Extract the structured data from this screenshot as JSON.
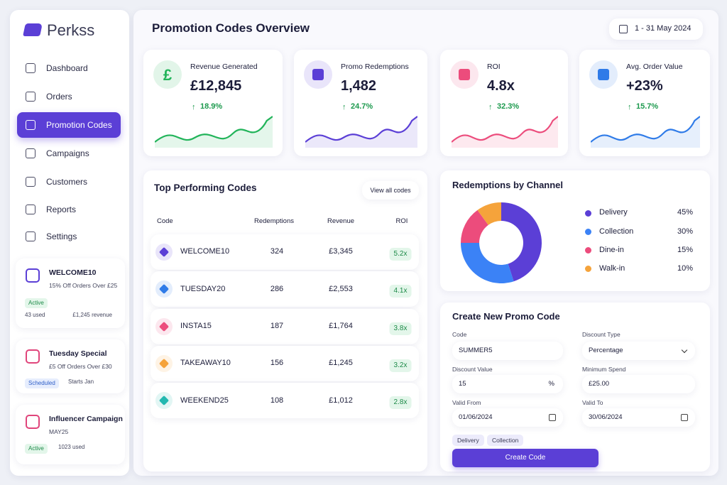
{
  "brand": "Perkss",
  "nav": [
    "Dashboard",
    "Orders",
    "Promotion Codes",
    "Campaigns",
    "Customers",
    "Reports",
    "Settings"
  ],
  "side_cards": [
    {
      "title": "WELCOME10",
      "subtitle": "15% Off Orders Over £25",
      "status": "Active",
      "left": "43 used",
      "right": "£1,245 revenue",
      "color": "#5b3fd6"
    },
    {
      "title": "Tuesday Special",
      "subtitle": "£5 Off Orders Over £30",
      "status": "Scheduled",
      "right": "Starts Jan",
      "color": "#e0457b"
    },
    {
      "title": "Influencer Campaign",
      "subtitle": "MAY25",
      "status": "Active",
      "right": "1023 used",
      "color": "#e0457b"
    }
  ],
  "header": {
    "title": "Promotion Codes Overview",
    "date_range": "1 - 31 May 2024"
  },
  "kpis": [
    {
      "label": "Revenue Generated",
      "value": "£12,845",
      "change": "18.9%",
      "color": "#22b45a",
      "icon": "£"
    },
    {
      "label": "Promo Redemptions",
      "value": "1,482",
      "change": "24.7%",
      "color": "#5b3fd6"
    },
    {
      "label": "ROI",
      "value": "4.8x",
      "change": "32.3%",
      "color": "#ec4c7c"
    },
    {
      "label": "Avg. Order Value",
      "value": "+23%",
      "change": "15.7%",
      "color": "#2f7be8"
    }
  ],
  "top_codes": {
    "title": "Top Performing Codes",
    "action": "View all codes",
    "columns": [
      "Code",
      "Redemptions",
      "Revenue",
      "ROI"
    ],
    "rows": [
      {
        "code": "WELCOME10",
        "redemptions": 324,
        "revenue": "£3,345",
        "roi": "5.2x",
        "color": "#5b3fd6"
      },
      {
        "code": "TUESDAY20",
        "redemptions": 286,
        "revenue": "£2,553",
        "roi": "4.1x",
        "color": "#2f7be8"
      },
      {
        "code": "INSTA15",
        "redemptions": 187,
        "revenue": "£1,764",
        "roi": "3.8x",
        "color": "#ec4c7c"
      },
      {
        "code": "TAKEAWAY10",
        "redemptions": 156,
        "revenue": "£1,245",
        "roi": "3.2x",
        "color": "#f5a33b"
      },
      {
        "code": "WEEKEND25",
        "redemptions": 108,
        "revenue": "£1,012",
        "roi": "2.8x",
        "color": "#22b8b0"
      }
    ]
  },
  "channels": {
    "title": "Redemptions by Channel",
    "items": [
      {
        "name": "Delivery",
        "value": 45,
        "label": "45%",
        "color": "#5b3fd6"
      },
      {
        "name": "Collection",
        "value": 30,
        "label": "30%",
        "color": "#3b82f6"
      },
      {
        "name": "Dine-in",
        "value": 15,
        "label": "15%",
        "color": "#ec4c7c"
      },
      {
        "name": "Walk-in",
        "value": 10,
        "label": "10%",
        "color": "#f5a33b"
      }
    ]
  },
  "create_form": {
    "title": "Create New Promo Code",
    "fields": [
      {
        "label": "Code",
        "value": "SUMMER5"
      },
      {
        "label": "Discount Type",
        "value": "Percentage"
      },
      {
        "label": "Discount Value",
        "value": "15",
        "suffix": "%"
      },
      {
        "label": "Minimum Spend",
        "value": "£25.00"
      },
      {
        "label": "Valid From",
        "value": "01/06/2024"
      },
      {
        "label": "Valid To",
        "value": "30/06/2024"
      }
    ],
    "tags": [
      "Delivery",
      "Collection"
    ],
    "button": "Create Code"
  }
}
